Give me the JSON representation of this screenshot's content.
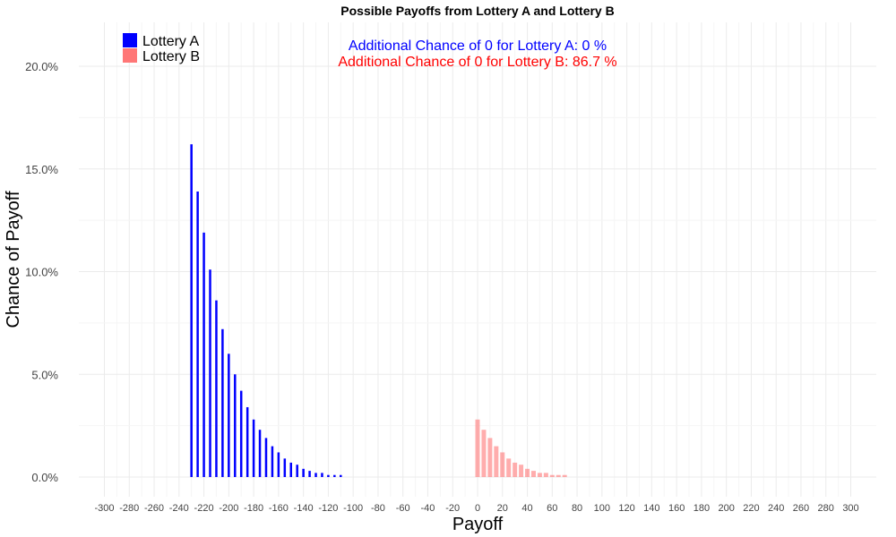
{
  "chart_data": {
    "type": "bar",
    "title": "Possible Payoffs from Lottery A and Lottery B",
    "xlabel": "Payoff",
    "ylabel": "Chance of Payoff",
    "xlim": [
      -310,
      310
    ],
    "ylim": [
      0,
      0.22
    ],
    "x_ticks": [
      -300,
      -280,
      -260,
      -240,
      -220,
      -200,
      -180,
      -160,
      -140,
      -120,
      -100,
      -80,
      -60,
      -40,
      -20,
      0,
      20,
      40,
      60,
      80,
      100,
      120,
      140,
      160,
      180,
      200,
      220,
      240,
      260,
      280,
      300
    ],
    "y_ticks": [
      0,
      0.05,
      0.1,
      0.15,
      0.2
    ],
    "y_tick_labels": [
      "0.0%",
      "5.0%",
      "10.0%",
      "15.0%",
      "20.0%"
    ],
    "grid": true,
    "legend": "top-left",
    "series": [
      {
        "name": "Lottery A",
        "color": "#0000ff",
        "x": [
          -230,
          -225,
          -220,
          -215,
          -210,
          -205,
          -200,
          -195,
          -190,
          -185,
          -180,
          -175,
          -170,
          -165,
          -160,
          -155,
          -150,
          -145,
          -140,
          -135,
          -130,
          -125,
          -120,
          -115,
          -110
        ],
        "y": [
          0.162,
          0.139,
          0.119,
          0.101,
          0.086,
          0.072,
          0.06,
          0.05,
          0.042,
          0.034,
          0.028,
          0.023,
          0.019,
          0.015,
          0.012,
          0.009,
          0.007,
          0.006,
          0.004,
          0.003,
          0.002,
          0.002,
          0.001,
          0.001,
          0.001
        ]
      },
      {
        "name": "Lottery B",
        "color": "#ff7777",
        "x": [
          0,
          5,
          10,
          15,
          20,
          25,
          30,
          35,
          40,
          45,
          50,
          55,
          60,
          65,
          70
        ],
        "y": [
          0.028,
          0.023,
          0.019,
          0.015,
          0.012,
          0.009,
          0.007,
          0.006,
          0.004,
          0.003,
          0.002,
          0.002,
          0.001,
          0.001,
          0.001
        ]
      }
    ],
    "annotations": [
      {
        "text": "Additional Chance of 0 for Lottery A:  0 %",
        "color": "#0000ff"
      },
      {
        "text": "Additional Chance of 0 for Lottery B:  86.7 %",
        "color": "#ff0000"
      }
    ]
  }
}
